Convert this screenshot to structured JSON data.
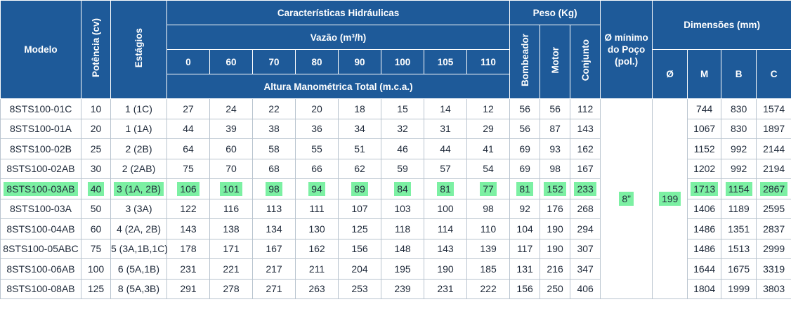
{
  "headers": {
    "modelo": "Modelo",
    "potencia": "Potência (cv)",
    "estagios": "Estágios",
    "caracteristicas": "Características Hidráulicas",
    "vazao": "Vazão (m³/h)",
    "vazao_values": [
      "0",
      "60",
      "70",
      "80",
      "90",
      "100",
      "105",
      "110"
    ],
    "altura": "Altura Manométrica Total (m.c.a.)",
    "peso": "Peso (Kg)",
    "bombeador": "Bombeador",
    "motor": "Motor",
    "conjunto": "Conjunto",
    "minimo_line1": "Ø mínimo",
    "minimo_line2": "do Poço",
    "minimo_line3": "(pol.)",
    "o": "Ø",
    "dimensoes": "Dimensões (mm)",
    "m": "M",
    "b": "B",
    "c": "C"
  },
  "merged": {
    "poco": "8”",
    "diametro": "199"
  },
  "highlight_color": "#7cf0a3",
  "header_color": "#1e5a99",
  "rows": [
    {
      "modelo": "8STS100-01C",
      "potencia": "10",
      "estagios": "1 (1C)",
      "alturas": [
        "27",
        "24",
        "22",
        "20",
        "18",
        "15",
        "14",
        "12"
      ],
      "bombeador": "56",
      "motor": "56",
      "conjunto": "112",
      "m": "744",
      "b": "830",
      "c": "1574"
    },
    {
      "modelo": "8STS100-01A",
      "potencia": "20",
      "estagios": "1 (1A)",
      "alturas": [
        "44",
        "39",
        "38",
        "36",
        "34",
        "32",
        "31",
        "29"
      ],
      "bombeador": "56",
      "motor": "87",
      "conjunto": "143",
      "m": "1067",
      "b": "830",
      "c": "1897"
    },
    {
      "modelo": "8STS100-02B",
      "potencia": "25",
      "estagios": "2 (2B)",
      "alturas": [
        "64",
        "60",
        "58",
        "55",
        "51",
        "46",
        "44",
        "41"
      ],
      "bombeador": "69",
      "motor": "93",
      "conjunto": "162",
      "m": "1152",
      "b": "992",
      "c": "2144"
    },
    {
      "modelo": "8STS100-02AB",
      "potencia": "30",
      "estagios": "2 (2AB)",
      "alturas": [
        "75",
        "70",
        "68",
        "66",
        "62",
        "59",
        "57",
        "54"
      ],
      "bombeador": "69",
      "motor": "98",
      "conjunto": "167",
      "m": "1202",
      "b": "992",
      "c": "2194"
    },
    {
      "modelo": "8STS100-03AB",
      "potencia": "40",
      "estagios": "3 (1A, 2B)",
      "alturas": [
        "106",
        "101",
        "98",
        "94",
        "89",
        "84",
        "81",
        "77"
      ],
      "bombeador": "81",
      "motor": "152",
      "conjunto": "233",
      "m": "1713",
      "b": "1154",
      "c": "2867",
      "highlight": true
    },
    {
      "modelo": "8STS100-03A",
      "potencia": "50",
      "estagios": "3 (3A)",
      "alturas": [
        "122",
        "116",
        "113",
        "111",
        "107",
        "103",
        "100",
        "98"
      ],
      "bombeador": "92",
      "motor": "176",
      "conjunto": "268",
      "m": "1406",
      "b": "1189",
      "c": "2595"
    },
    {
      "modelo": "8STS100-04AB",
      "potencia": "60",
      "estagios": "4 (2A, 2B)",
      "alturas": [
        "143",
        "138",
        "134",
        "130",
        "125",
        "118",
        "114",
        "110"
      ],
      "bombeador": "104",
      "motor": "190",
      "conjunto": "294",
      "m": "1486",
      "b": "1351",
      "c": "2837"
    },
    {
      "modelo": "8STS100-05ABC",
      "potencia": "75",
      "estagios": "5 (3A,1B,1C)",
      "alturas": [
        "178",
        "171",
        "167",
        "162",
        "156",
        "148",
        "143",
        "139"
      ],
      "bombeador": "117",
      "motor": "190",
      "conjunto": "307",
      "m": "1486",
      "b": "1513",
      "c": "2999"
    },
    {
      "modelo": "8STS100-06AB",
      "potencia": "100",
      "estagios": "6 (5A,1B)",
      "alturas": [
        "231",
        "221",
        "217",
        "211",
        "204",
        "195",
        "190",
        "185"
      ],
      "bombeador": "131",
      "motor": "216",
      "conjunto": "347",
      "m": "1644",
      "b": "1675",
      "c": "3319"
    },
    {
      "modelo": "8STS100-08AB",
      "potencia": "125",
      "estagios": "8 (5A,3B)",
      "alturas": [
        "291",
        "278",
        "271",
        "263",
        "253",
        "239",
        "231",
        "222"
      ],
      "bombeador": "156",
      "motor": "250",
      "conjunto": "406",
      "m": "1804",
      "b": "1999",
      "c": "3803"
    }
  ]
}
